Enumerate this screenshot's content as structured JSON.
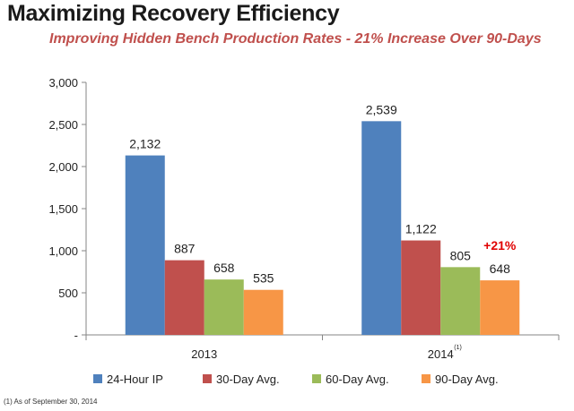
{
  "chart_data": {
    "type": "bar",
    "title": "Maximizing Recovery Efficiency",
    "subtitle": "Improving Hidden Bench Production Rates - 21% Increase Over 90-Days",
    "categories": [
      "2013",
      "2014"
    ],
    "category_superscripts": [
      "",
      "(1)"
    ],
    "series": [
      {
        "name": "24-Hour IP",
        "values": [
          2132,
          2539
        ],
        "labels": [
          "2,132",
          "2,539"
        ],
        "color": "#4f81bd"
      },
      {
        "name": "30-Day Avg.",
        "values": [
          887,
          1122
        ],
        "labels": [
          "887",
          "1,122"
        ],
        "color": "#c0504d"
      },
      {
        "name": "60-Day Avg.",
        "values": [
          658,
          805
        ],
        "labels": [
          "658",
          "805"
        ],
        "color": "#9bbb59"
      },
      {
        "name": "90-Day Avg.",
        "values": [
          535,
          648
        ],
        "labels": [
          "535",
          "648"
        ],
        "color": "#f79646"
      }
    ],
    "ylim": [
      0,
      3000
    ],
    "yticks": [
      {
        "value": 0,
        "label": "-"
      },
      {
        "value": 500,
        "label": "500"
      },
      {
        "value": 1000,
        "label": "1,000"
      },
      {
        "value": 1500,
        "label": "1,500"
      },
      {
        "value": 2000,
        "label": "2,000"
      },
      {
        "value": 2500,
        "label": "2,500"
      },
      {
        "value": 3000,
        "label": "3,000"
      }
    ],
    "annotation": {
      "text": "+21%",
      "series_index": 3,
      "category_index": 1,
      "color": "#e00000"
    },
    "grid": false,
    "legend": "bottom",
    "xlabel": "",
    "ylabel": ""
  },
  "footnote": "(1) As of September 30, 2014"
}
